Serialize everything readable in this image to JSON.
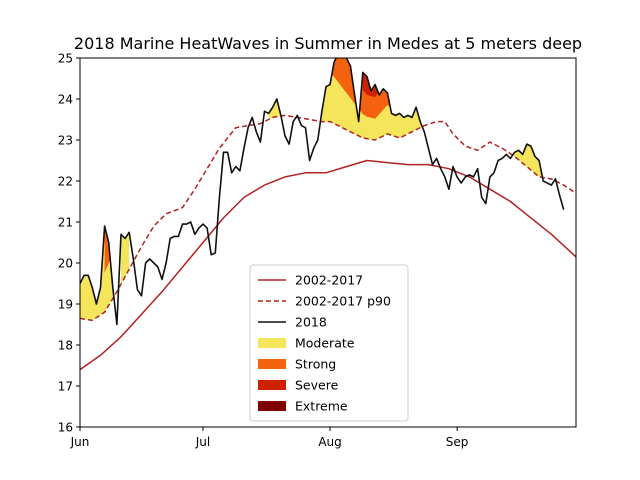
{
  "chart_data": {
    "type": "line",
    "title": "2018 Marine HeatWaves in Summer in Medes at 5 meters deep",
    "xlabel": "",
    "ylabel": "",
    "xlim": [
      0,
      121
    ],
    "ylim": [
      16,
      25
    ],
    "x_ticks": [
      {
        "day": 0,
        "label": "Jun"
      },
      {
        "day": 30,
        "label": "Jul"
      },
      {
        "day": 61,
        "label": "Aug"
      },
      {
        "day": 92,
        "label": "Sep"
      }
    ],
    "y_ticks": [
      16,
      17,
      18,
      19,
      20,
      21,
      22,
      23,
      24,
      25
    ],
    "legend": {
      "position": "lower-center",
      "entries": [
        {
          "label": "2002-2017",
          "kind": "line",
          "color": "#b22222",
          "dash": false
        },
        {
          "label": "2002-2017 p90",
          "kind": "line",
          "color": "#b22222",
          "dash": true
        },
        {
          "label": "2018",
          "kind": "line",
          "color": "#111111",
          "dash": false
        },
        {
          "label": "Moderate",
          "kind": "patch",
          "color": "#f5e55a"
        },
        {
          "label": "Strong",
          "kind": "patch",
          "color": "#f5620f"
        },
        {
          "label": "Severe",
          "kind": "patch",
          "color": "#cc2200"
        },
        {
          "label": "Extreme",
          "kind": "patch",
          "color": "#800000"
        }
      ]
    },
    "series": [
      {
        "name": "2002-2017",
        "color": "#b22222",
        "points": [
          [
            0,
            17.4
          ],
          [
            5,
            17.75
          ],
          [
            10,
            18.2
          ],
          [
            15,
            18.75
          ],
          [
            20,
            19.3
          ],
          [
            25,
            19.9
          ],
          [
            30,
            20.5
          ],
          [
            35,
            21.1
          ],
          [
            40,
            21.6
          ],
          [
            45,
            21.9
          ],
          [
            50,
            22.1
          ],
          [
            55,
            22.2
          ],
          [
            60,
            22.2
          ],
          [
            65,
            22.35
          ],
          [
            70,
            22.5
          ],
          [
            75,
            22.45
          ],
          [
            80,
            22.4
          ],
          [
            85,
            22.4
          ],
          [
            90,
            22.3
          ],
          [
            95,
            22.1
          ],
          [
            100,
            21.8
          ],
          [
            105,
            21.5
          ],
          [
            110,
            21.1
          ],
          [
            115,
            20.7
          ],
          [
            121,
            20.15
          ]
        ]
      },
      {
        "name": "2002-2017 p90",
        "color": "#b22222",
        "points": [
          [
            0,
            18.65
          ],
          [
            3,
            18.6
          ],
          [
            6,
            18.8
          ],
          [
            9,
            19.3
          ],
          [
            12,
            19.85
          ],
          [
            15,
            20.4
          ],
          [
            18,
            20.9
          ],
          [
            21,
            21.2
          ],
          [
            25,
            21.35
          ],
          [
            28,
            21.8
          ],
          [
            31,
            22.3
          ],
          [
            34,
            22.8
          ],
          [
            38,
            23.3
          ],
          [
            41,
            23.35
          ],
          [
            44,
            23.4
          ],
          [
            47,
            23.55
          ],
          [
            50,
            23.6
          ],
          [
            53,
            23.55
          ],
          [
            56,
            23.5
          ],
          [
            59,
            23.45
          ],
          [
            61,
            23.45
          ],
          [
            63,
            23.35
          ],
          [
            66,
            23.2
          ],
          [
            69,
            23.05
          ],
          [
            72,
            23.0
          ],
          [
            75,
            23.15
          ],
          [
            78,
            23.05
          ],
          [
            81,
            23.2
          ],
          [
            84,
            23.35
          ],
          [
            87,
            23.45
          ],
          [
            89,
            23.45
          ],
          [
            91,
            23.15
          ],
          [
            94,
            22.85
          ],
          [
            97,
            22.75
          ],
          [
            100,
            22.95
          ],
          [
            103,
            22.8
          ],
          [
            106,
            22.6
          ],
          [
            109,
            22.35
          ],
          [
            112,
            22.1
          ],
          [
            115,
            22.05
          ],
          [
            118,
            21.9
          ],
          [
            121,
            21.7
          ]
        ]
      },
      {
        "name": "2018",
        "color": "#111111",
        "points": [
          [
            0,
            19.5
          ],
          [
            1,
            19.7
          ],
          [
            2,
            19.7
          ],
          [
            3,
            19.4
          ],
          [
            4,
            19.0
          ],
          [
            5,
            19.4
          ],
          [
            6,
            20.9
          ],
          [
            7,
            20.5
          ],
          [
            8,
            19.4
          ],
          [
            9,
            18.5
          ],
          [
            10,
            20.7
          ],
          [
            11,
            20.6
          ],
          [
            12,
            20.75
          ],
          [
            13,
            20.1
          ],
          [
            14,
            19.35
          ],
          [
            15,
            19.2
          ],
          [
            16,
            20.0
          ],
          [
            17,
            20.1
          ],
          [
            18,
            20.0
          ],
          [
            19,
            19.9
          ],
          [
            20,
            19.6
          ],
          [
            21,
            20.0
          ],
          [
            22,
            20.6
          ],
          [
            23,
            20.65
          ],
          [
            24,
            20.65
          ],
          [
            25,
            20.95
          ],
          [
            26,
            20.95
          ],
          [
            27,
            21.0
          ],
          [
            28,
            20.7
          ],
          [
            29,
            20.85
          ],
          [
            30,
            20.95
          ],
          [
            31,
            20.85
          ],
          [
            32,
            20.2
          ],
          [
            33,
            20.25
          ],
          [
            34,
            21.6
          ],
          [
            35,
            22.7
          ],
          [
            36,
            22.7
          ],
          [
            37,
            22.2
          ],
          [
            38,
            22.35
          ],
          [
            39,
            22.25
          ],
          [
            40,
            22.8
          ],
          [
            41,
            23.3
          ],
          [
            42,
            23.55
          ],
          [
            43,
            23.2
          ],
          [
            44,
            22.95
          ],
          [
            45,
            23.7
          ],
          [
            46,
            23.65
          ],
          [
            47,
            23.8
          ],
          [
            48,
            24.0
          ],
          [
            49,
            23.6
          ],
          [
            50,
            23.1
          ],
          [
            51,
            22.9
          ],
          [
            52,
            23.45
          ],
          [
            53,
            23.6
          ],
          [
            54,
            23.35
          ],
          [
            55,
            23.3
          ],
          [
            56,
            22.5
          ],
          [
            57,
            22.8
          ],
          [
            58,
            23.0
          ],
          [
            59,
            23.7
          ],
          [
            60,
            24.3
          ],
          [
            61,
            24.35
          ],
          [
            62,
            24.9
          ],
          [
            63,
            25.1
          ],
          [
            64,
            25.1
          ],
          [
            65,
            25.0
          ],
          [
            66,
            24.8
          ],
          [
            67,
            24.1
          ],
          [
            68,
            23.45
          ],
          [
            69,
            24.65
          ],
          [
            70,
            24.55
          ],
          [
            71,
            24.2
          ],
          [
            72,
            24.35
          ],
          [
            73,
            24.1
          ],
          [
            74,
            24.25
          ],
          [
            75,
            24.15
          ],
          [
            76,
            23.65
          ],
          [
            77,
            23.6
          ],
          [
            78,
            23.65
          ],
          [
            79,
            23.55
          ],
          [
            80,
            23.6
          ],
          [
            81,
            23.55
          ],
          [
            82,
            23.8
          ],
          [
            83,
            23.45
          ],
          [
            84,
            23.2
          ],
          [
            85,
            22.8
          ],
          [
            86,
            22.4
          ],
          [
            87,
            22.55
          ],
          [
            88,
            22.3
          ],
          [
            89,
            22.1
          ],
          [
            90,
            21.8
          ],
          [
            91,
            22.35
          ],
          [
            92,
            22.1
          ],
          [
            93,
            21.95
          ],
          [
            94,
            22.1
          ],
          [
            95,
            22.15
          ],
          [
            96,
            22.1
          ],
          [
            97,
            22.3
          ],
          [
            98,
            21.6
          ],
          [
            99,
            21.45
          ],
          [
            100,
            22.1
          ],
          [
            101,
            22.2
          ],
          [
            102,
            22.5
          ],
          [
            103,
            22.55
          ],
          [
            104,
            22.65
          ],
          [
            105,
            22.55
          ],
          [
            106,
            22.7
          ],
          [
            107,
            22.75
          ],
          [
            108,
            22.65
          ],
          [
            109,
            22.9
          ],
          [
            110,
            22.85
          ],
          [
            111,
            22.6
          ],
          [
            112,
            22.5
          ],
          [
            113,
            22.0
          ],
          [
            114,
            21.95
          ],
          [
            115,
            21.9
          ],
          [
            116,
            22.05
          ],
          [
            117,
            21.65
          ],
          [
            118,
            21.3
          ]
        ]
      }
    ],
    "heatwave_fills": [
      {
        "category": "Moderate",
        "color": "#f5e55a",
        "segments": [
          [
            0,
            9
          ],
          [
            10,
            12
          ],
          [
            46,
            49
          ],
          [
            59,
            84
          ],
          [
            102,
            118
          ]
        ]
      },
      {
        "category": "Strong",
        "color": "#f5620f",
        "segments": [
          [
            6,
            8
          ],
          [
            60,
            76
          ]
        ]
      },
      {
        "category": "Severe",
        "color": "#cc2200",
        "segments": [
          [
            62,
            66
          ],
          [
            69,
            76
          ]
        ]
      },
      {
        "category": "Extreme",
        "color": "#800000",
        "segments": [
          [
            63,
            65
          ]
        ]
      }
    ]
  }
}
